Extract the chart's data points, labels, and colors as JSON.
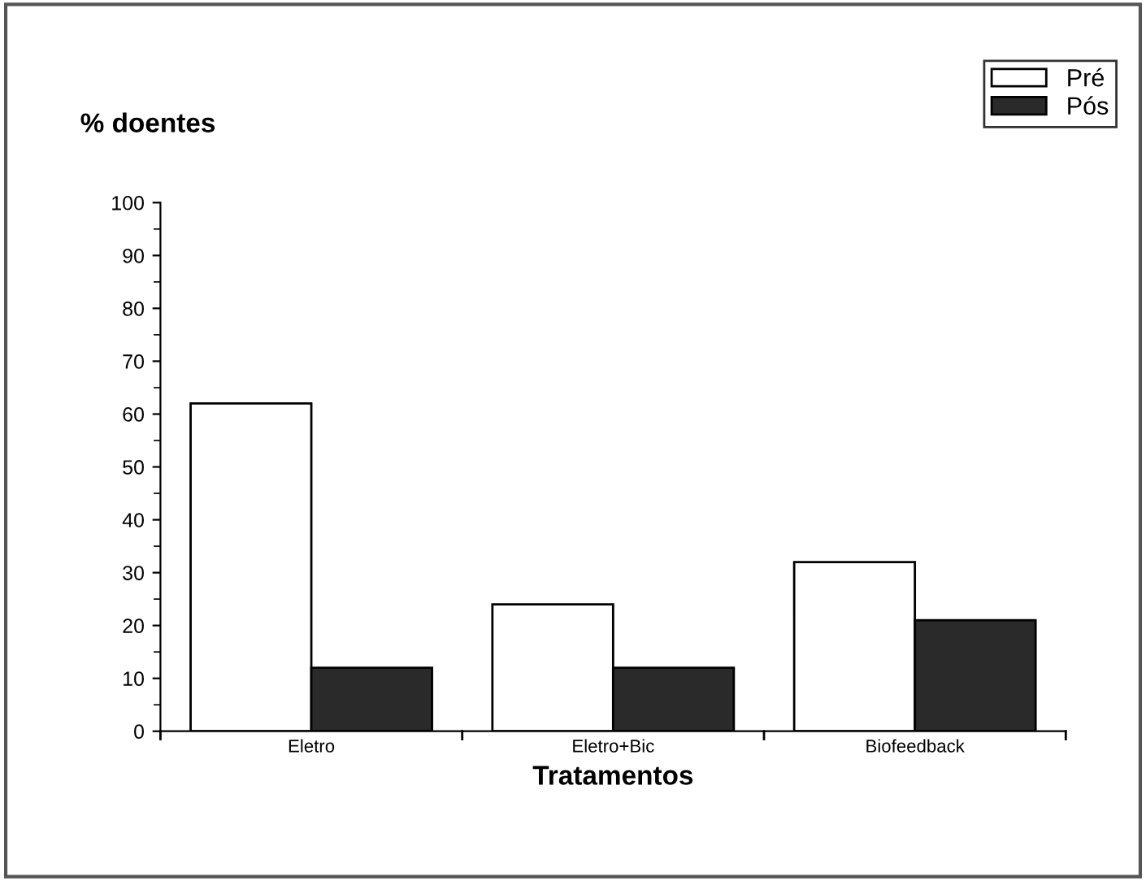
{
  "chart_data": {
    "type": "bar",
    "ylabel": "% doentes",
    "xlabel": "Tratamentos",
    "categories": [
      "Eletro",
      "Eletro+Bic",
      "Biofeedback"
    ],
    "series": [
      {
        "name": "Pré",
        "color": "#ffffff",
        "values": [
          62,
          24,
          32
        ]
      },
      {
        "name": "Pós",
        "color": "#2a2a2a",
        "values": [
          12,
          12,
          21
        ]
      }
    ],
    "ylim": [
      0,
      100
    ],
    "yticks": [
      0,
      10,
      20,
      30,
      40,
      50,
      60,
      70,
      80,
      90,
      100
    ],
    "grid": false,
    "legend": "top right"
  }
}
